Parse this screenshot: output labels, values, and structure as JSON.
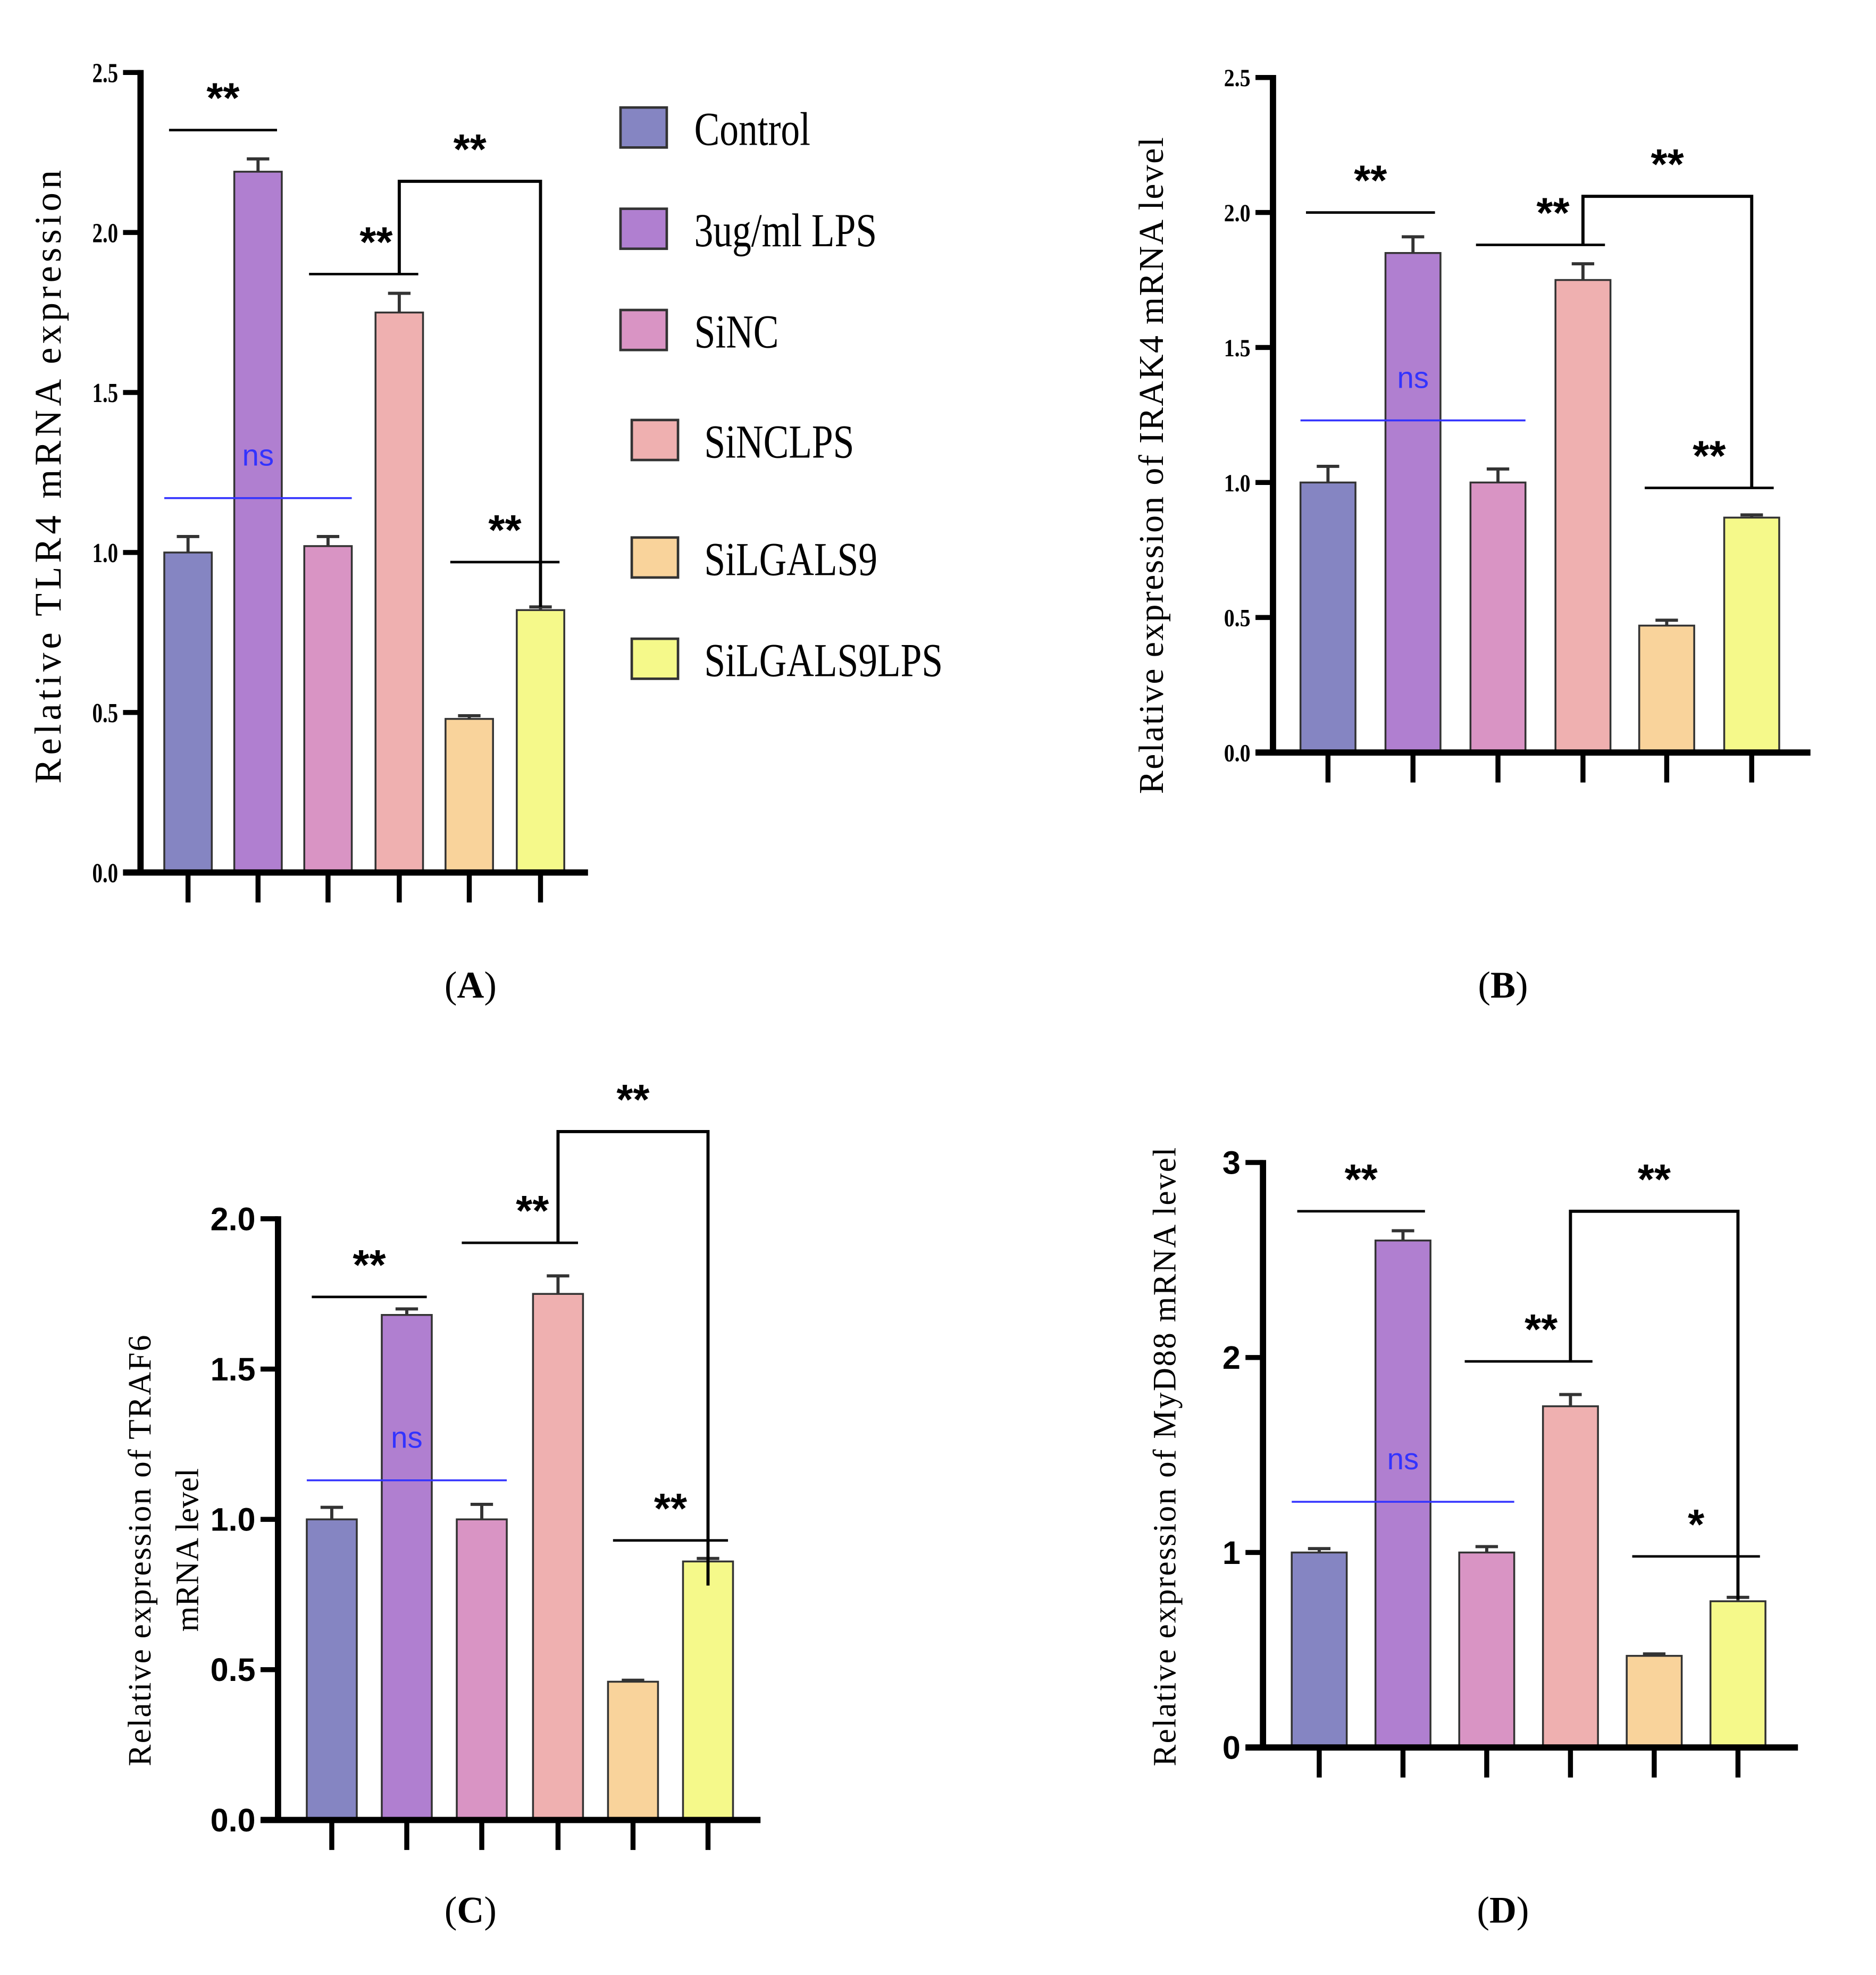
{
  "legend": {
    "items": [
      {
        "label": "Control",
        "color": "#8585c2"
      },
      {
        "label": "3ug/ml LPS",
        "color": "#b07fd0"
      },
      {
        "label": "SiNC",
        "color": "#d994c4"
      },
      {
        "label": "SiNCLPS",
        "color": "#efb0b0"
      },
      {
        "label": "SiLGALS9",
        "color": "#f9d39b"
      },
      {
        "label": "SiLGALS9LPS",
        "color": "#f5f98a"
      }
    ]
  },
  "chart_data": [
    {
      "type": "bar",
      "panel_label": "A",
      "ylabel": "Relative TLR4  mRNA expression",
      "ylim": [
        0,
        2.5
      ],
      "yticks": [
        "0.0",
        "0.5",
        "1.0",
        "1.5",
        "2.0",
        "2.5"
      ],
      "ytick_values": [
        0,
        0.5,
        1,
        1.5,
        2,
        2.5
      ],
      "categories": [
        "Control",
        "3ug/ml LPS",
        "SiNC",
        "SiNCLPS",
        "SiLGALS9",
        "SiLGALS9LPS"
      ],
      "values": [
        1.0,
        2.19,
        1.02,
        1.75,
        0.48,
        0.82
      ],
      "errors": [
        0.05,
        0.04,
        0.03,
        0.06,
        0.01,
        0.01
      ],
      "annotations": [
        {
          "label": "**",
          "type": "line",
          "from": 0,
          "to": 1,
          "y": 2.32
        },
        {
          "label": "ns",
          "type": "line",
          "from": 0,
          "to": 2,
          "y": 1.17,
          "color": "#3333ff"
        },
        {
          "label": "**",
          "type": "line",
          "from": 2,
          "to": 3,
          "y": 1.87
        },
        {
          "label": "**",
          "type": "bracket",
          "from": 3,
          "to": 5,
          "y": 2.16,
          "left_end": 1.87,
          "right_end": 0.83
        },
        {
          "label": "**",
          "type": "line",
          "from": 4,
          "to": 5,
          "y": 0.97
        }
      ]
    },
    {
      "type": "bar",
      "panel_label": "B",
      "ylabel": "Relative expression of IRAK4 mRNA level",
      "ylim": [
        0,
        2.5
      ],
      "yticks": [
        "0.0",
        "0.5",
        "1.0",
        "1.5",
        "2.0",
        "2.5"
      ],
      "ytick_values": [
        0,
        0.5,
        1,
        1.5,
        2,
        2.5
      ],
      "categories": [
        "Control",
        "3ug/ml LPS",
        "SiNC",
        "SiNCLPS",
        "SiLGALS9",
        "SiLGALS9LPS"
      ],
      "values": [
        1.0,
        1.85,
        1.0,
        1.75,
        0.47,
        0.87
      ],
      "errors": [
        0.06,
        0.06,
        0.05,
        0.06,
        0.02,
        0.01
      ],
      "annotations": [
        {
          "label": "**",
          "type": "line",
          "from": 0,
          "to": 1,
          "y": 2.0
        },
        {
          "label": "ns",
          "type": "line",
          "from": 0,
          "to": 2,
          "y": 1.23,
          "color": "#3333ff"
        },
        {
          "label": "**",
          "type": "line",
          "from": 2,
          "to": 3,
          "y": 1.88
        },
        {
          "label": "**",
          "type": "bracket",
          "from": 3,
          "to": 5,
          "y": 2.06,
          "left_end": 1.88,
          "right_end": 0.98
        },
        {
          "label": "**",
          "type": "line",
          "from": 4,
          "to": 5,
          "y": 0.98
        }
      ]
    },
    {
      "type": "bar",
      "panel_label": "C",
      "ylabel": "Relative expression of TRAF6",
      "ylabel2": "mRNA level",
      "ylim": [
        0,
        2.0
      ],
      "yticks": [
        "0.0",
        "0.5",
        "1.0",
        "1.5",
        "2.0"
      ],
      "ytick_values": [
        0,
        0.5,
        1,
        1.5,
        2
      ],
      "categories": [
        "Control",
        "3ug/ml LPS",
        "SiNC",
        "SiNCLPS",
        "SiLGALS9",
        "SiLGALS9LPS"
      ],
      "values": [
        1.0,
        1.68,
        1.0,
        1.75,
        0.46,
        0.86
      ],
      "errors": [
        0.04,
        0.02,
        0.05,
        0.06,
        0.005,
        0.01
      ],
      "annotations": [
        {
          "label": "**",
          "type": "line",
          "from": 0,
          "to": 1,
          "y": 1.74
        },
        {
          "label": "ns",
          "type": "line",
          "from": 0,
          "to": 2,
          "y": 1.13,
          "color": "#3333ff"
        },
        {
          "label": "**",
          "type": "line",
          "from": 2,
          "to": 3,
          "y": 1.92
        },
        {
          "label": "**",
          "type": "bracket",
          "from": 3,
          "to": 5,
          "y": 2.29,
          "left_end": 1.92,
          "right_end": 0.78
        },
        {
          "label": "**",
          "type": "line",
          "from": 4,
          "to": 5,
          "y": 0.93
        }
      ]
    },
    {
      "type": "bar",
      "panel_label": "D",
      "ylabel": "Relative expression of MyD88 mRNA level",
      "ylim": [
        0,
        3
      ],
      "yticks": [
        "0",
        "1",
        "2",
        "3"
      ],
      "ytick_values": [
        0,
        1,
        2,
        3
      ],
      "categories": [
        "Control",
        "3ug/ml LPS",
        "SiNC",
        "SiNCLPS",
        "SiLGALS9",
        "SiLGALS9LPS"
      ],
      "values": [
        1.0,
        2.6,
        1.0,
        1.75,
        0.47,
        0.75
      ],
      "errors": [
        0.02,
        0.05,
        0.03,
        0.06,
        0.01,
        0.02
      ],
      "annotations": [
        {
          "label": "**",
          "type": "line",
          "from": 0,
          "to": 1,
          "y": 2.75
        },
        {
          "label": "ns",
          "type": "line",
          "from": 0,
          "to": 2,
          "y": 1.26,
          "color": "#3333ff"
        },
        {
          "label": "**",
          "type": "line",
          "from": 2,
          "to": 3,
          "y": 1.98
        },
        {
          "label": "**",
          "type": "bracket",
          "from": 3,
          "to": 5,
          "y": 2.75,
          "left_end": 1.98,
          "right_end": 0.76
        },
        {
          "label": "*",
          "type": "line",
          "from": 4,
          "to": 5,
          "y": 0.98
        }
      ]
    }
  ]
}
